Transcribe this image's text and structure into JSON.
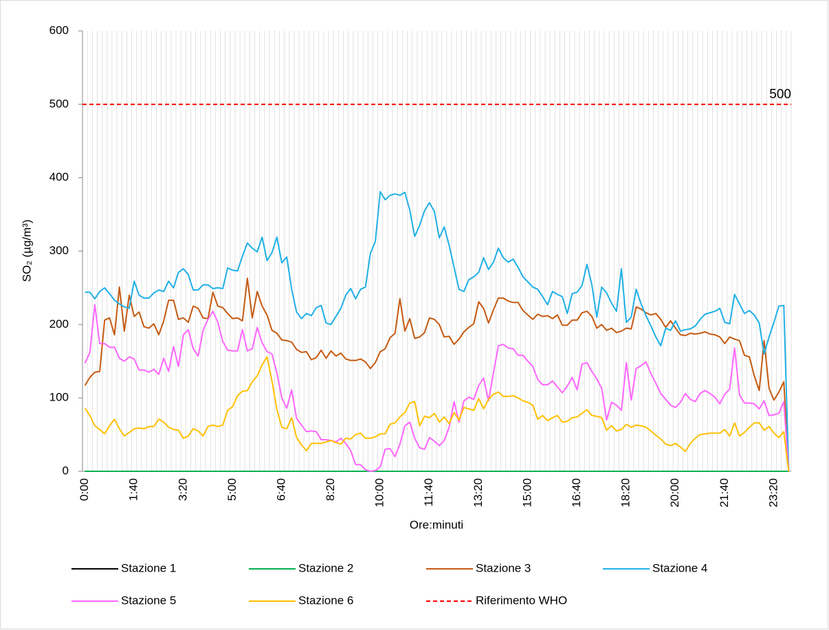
{
  "chart_data": {
    "type": "line",
    "y_label": "SO₂ (µg/m³)",
    "x_label": "Ore:minuti",
    "categories": [
      "0:00",
      null,
      null,
      null,
      null,
      null,
      null,
      null,
      null,
      null,
      "1:40",
      null,
      null,
      null,
      null,
      null,
      null,
      null,
      null,
      null,
      "3:20",
      null,
      null,
      null,
      null,
      null,
      null,
      null,
      null,
      null,
      "5:00",
      null,
      null,
      null,
      null,
      null,
      null,
      null,
      null,
      null,
      "6:40",
      null,
      null,
      null,
      null,
      null,
      null,
      null,
      null,
      null,
      "8:20",
      null,
      null,
      null,
      null,
      null,
      null,
      null,
      null,
      null,
      "10:00",
      null,
      null,
      null,
      null,
      null,
      null,
      null,
      null,
      null,
      "11:40",
      null,
      null,
      null,
      null,
      null,
      null,
      null,
      null,
      null,
      "13:20",
      null,
      null,
      null,
      null,
      null,
      null,
      null,
      null,
      null,
      "15:00",
      null,
      null,
      null,
      null,
      null,
      null,
      null,
      null,
      null,
      "16:40",
      null,
      null,
      null,
      null,
      null,
      null,
      null,
      null,
      null,
      "18:20",
      null,
      null,
      null,
      null,
      null,
      null,
      null,
      null,
      null,
      "20:00",
      null,
      null,
      null,
      null,
      null,
      null,
      null,
      null,
      null,
      "21:40",
      null,
      null,
      null,
      null,
      null,
      null,
      null,
      null,
      null,
      "23:20",
      null,
      null,
      null
    ],
    "series": [
      {
        "name": "Stazione 1",
        "color": "#000000",
        "values": [
          0,
          0,
          0,
          0,
          0,
          0,
          0,
          0,
          0,
          0,
          0,
          0,
          0,
          0,
          0,
          0,
          0,
          0,
          0,
          0,
          0,
          0,
          0,
          0,
          0,
          0,
          0,
          0,
          0,
          0,
          0,
          0,
          0,
          0,
          0,
          0,
          0,
          0,
          0,
          0,
          0,
          0,
          0,
          0,
          0,
          0,
          0,
          0,
          0,
          0,
          0,
          0,
          0,
          0,
          0,
          0,
          0,
          0,
          0,
          0,
          0,
          0,
          0,
          0,
          0,
          0,
          0,
          0,
          0,
          0,
          0,
          0,
          0,
          0,
          0,
          0,
          0,
          0,
          0,
          0,
          0,
          0,
          0,
          0,
          0,
          0,
          0,
          0,
          0,
          0,
          0,
          0,
          0,
          0,
          0,
          0,
          0,
          0,
          0,
          0,
          0,
          0,
          0,
          0,
          0,
          0,
          0,
          0,
          0,
          0,
          0,
          0,
          0,
          0,
          0,
          0,
          0,
          0,
          0,
          0,
          0,
          0,
          0,
          0,
          0,
          0,
          0,
          0,
          0,
          0,
          0,
          0,
          0,
          0,
          0,
          0,
          0,
          0,
          0,
          0,
          0,
          0,
          0,
          0
        ]
      },
      {
        "name": "Stazione 2",
        "color": "#00b050",
        "values": [
          0,
          0,
          0,
          0,
          0,
          0,
          0,
          0,
          0,
          0,
          0,
          0,
          0,
          0,
          0,
          0,
          0,
          0,
          0,
          0,
          0,
          0,
          0,
          0,
          0,
          0,
          0,
          0,
          0,
          0,
          0,
          0,
          0,
          0,
          0,
          0,
          0,
          0,
          0,
          0,
          0,
          0,
          0,
          0,
          0,
          0,
          0,
          0,
          0,
          0,
          0,
          0,
          0,
          0,
          0,
          0,
          0,
          0,
          0,
          0,
          0,
          0,
          0,
          0,
          0,
          0,
          0,
          0,
          0,
          0,
          0,
          0,
          0,
          0,
          0,
          0,
          0,
          0,
          0,
          0,
          0,
          0,
          0,
          0,
          0,
          0,
          0,
          0,
          0,
          0,
          0,
          0,
          0,
          0,
          0,
          0,
          0,
          0,
          0,
          0,
          0,
          0,
          0,
          0,
          0,
          0,
          0,
          0,
          0,
          0,
          0,
          0,
          0,
          0,
          0,
          0,
          0,
          0,
          0,
          0,
          0,
          0,
          0,
          0,
          0,
          0,
          0,
          0,
          0,
          0,
          0,
          0,
          0,
          0,
          0,
          0,
          0,
          0,
          0,
          0,
          0,
          0,
          0,
          0
        ]
      },
      {
        "name": "Stazione 3",
        "color": "#c55a11",
        "values": [
          117,
          128,
          135,
          136,
          206,
          209,
          186,
          251,
          191,
          240,
          211,
          217,
          197,
          195,
          201,
          186,
          205,
          233,
          233,
          207,
          209,
          203,
          225,
          222,
          209,
          208,
          244,
          225,
          223,
          215,
          208,
          209,
          205,
          263,
          209,
          245,
          225,
          213,
          192,
          188,
          179,
          178,
          176,
          166,
          162,
          163,
          152,
          155,
          165,
          154,
          164,
          157,
          161,
          153,
          151,
          151,
          153,
          149,
          140,
          148,
          163,
          167,
          182,
          188,
          235,
          191,
          208,
          181,
          183,
          189,
          209,
          207,
          200,
          183,
          184,
          173,
          180,
          190,
          196,
          201,
          231,
          222,
          202,
          220,
          236,
          236,
          232,
          230,
          230,
          219,
          213,
          207,
          214,
          211,
          212,
          208,
          213,
          199,
          199,
          206,
          206,
          216,
          218,
          211,
          195,
          200,
          192,
          195,
          189,
          191,
          195,
          194,
          224,
          221,
          216,
          213,
          215,
          207,
          196,
          205,
          195,
          186,
          185,
          188,
          187,
          188,
          190,
          187,
          186,
          183,
          174,
          183,
          180,
          178,
          158,
          156,
          130,
          110,
          178,
          113,
          97,
          108,
          122,
          0
        ]
      },
      {
        "name": "Stazione 4",
        "color": "#1fb0e6",
        "values": [
          244,
          244,
          235,
          245,
          250,
          242,
          233,
          228,
          224,
          222,
          259,
          240,
          236,
          236,
          243,
          247,
          245,
          259,
          250,
          271,
          276,
          268,
          247,
          247,
          254,
          254,
          249,
          250,
          249,
          277,
          274,
          273,
          293,
          311,
          304,
          299,
          319,
          287,
          298,
          319,
          284,
          292,
          248,
          217,
          208,
          215,
          212,
          223,
          226,
          202,
          200,
          211,
          222,
          240,
          249,
          235,
          248,
          251,
          297,
          313,
          381,
          370,
          376,
          378,
          376,
          380,
          356,
          320,
          335,
          355,
          366,
          354,
          318,
          333,
          308,
          278,
          248,
          245,
          261,
          265,
          271,
          291,
          275,
          285,
          304,
          291,
          285,
          289,
          278,
          265,
          258,
          251,
          248,
          238,
          227,
          245,
          241,
          238,
          215,
          242,
          244,
          253,
          282,
          254,
          210,
          251,
          243,
          229,
          218,
          276,
          203,
          210,
          248,
          228,
          212,
          198,
          183,
          171,
          195,
          192,
          205,
          191,
          193,
          194,
          198,
          207,
          214,
          216,
          218,
          222,
          203,
          201,
          241,
          228,
          215,
          219,
          213,
          202,
          160,
          183,
          203,
          225,
          226,
          0
        ]
      },
      {
        "name": "Stazione 5",
        "color": "#ff66ff",
        "values": [
          147,
          162,
          227,
          174,
          174,
          169,
          169,
          154,
          150,
          156,
          153,
          138,
          138,
          135,
          139,
          132,
          154,
          136,
          170,
          143,
          186,
          193,
          167,
          157,
          192,
          207,
          218,
          203,
          177,
          165,
          164,
          164,
          193,
          164,
          167,
          196,
          175,
          163,
          160,
          134,
          100,
          86,
          111,
          72,
          63,
          54,
          55,
          54,
          43,
          43,
          42,
          40,
          45,
          38,
          28,
          9,
          9,
          2,
          0,
          1,
          6,
          30,
          31,
          20,
          37,
          62,
          67,
          45,
          32,
          30,
          46,
          41,
          35,
          42,
          60,
          95,
          67,
          96,
          101,
          98,
          117,
          127,
          96,
          134,
          171,
          173,
          168,
          167,
          158,
          158,
          150,
          143,
          125,
          118,
          118,
          123,
          115,
          107,
          116,
          128,
          111,
          146,
          148,
          136,
          126,
          113,
          70,
          94,
          90,
          83,
          148,
          97,
          140,
          144,
          149,
          133,
          120,
          106,
          98,
          90,
          87,
          94,
          106,
          98,
          95,
          106,
          110,
          106,
          101,
          92,
          105,
          112,
          168,
          104,
          93,
          93,
          92,
          85,
          96,
          76,
          77,
          79,
          95,
          0
        ]
      },
      {
        "name": "Stazione 6",
        "color": "#ffc000",
        "values": [
          86,
          76,
          62,
          57,
          51,
          62,
          71,
          58,
          48,
          53,
          58,
          59,
          58,
          61,
          61,
          71,
          67,
          60,
          57,
          56,
          45,
          48,
          58,
          55,
          48,
          61,
          63,
          61,
          63,
          83,
          88,
          103,
          109,
          110,
          122,
          130,
          145,
          156,
          123,
          84,
          60,
          58,
          73,
          46,
          36,
          28,
          38,
          38,
          38,
          40,
          42,
          39,
          37,
          45,
          44,
          50,
          52,
          45,
          45,
          47,
          51,
          51,
          64,
          66,
          74,
          80,
          93,
          95,
          62,
          75,
          73,
          79,
          67,
          74,
          65,
          80,
          70,
          87,
          85,
          83,
          99,
          85,
          98,
          105,
          108,
          102,
          102,
          103,
          100,
          96,
          94,
          90,
          71,
          76,
          69,
          73,
          76,
          67,
          68,
          73,
          74,
          79,
          84,
          76,
          75,
          73,
          56,
          62,
          55,
          57,
          64,
          60,
          63,
          62,
          60,
          55,
          49,
          44,
          37,
          35,
          38,
          33,
          27,
          38,
          45,
          50,
          51,
          52,
          52,
          52,
          57,
          48,
          66,
          48,
          53,
          60,
          66,
          66,
          56,
          61,
          52,
          46,
          54,
          0
        ]
      }
    ],
    "reference": {
      "name": "Riferimento WHO",
      "value": 500,
      "color": "#ff0000",
      "dash": true
    },
    "ylim": [
      0,
      600
    ],
    "yticks": [
      0,
      100,
      200,
      300,
      400,
      500,
      600
    ],
    "grid": true
  }
}
